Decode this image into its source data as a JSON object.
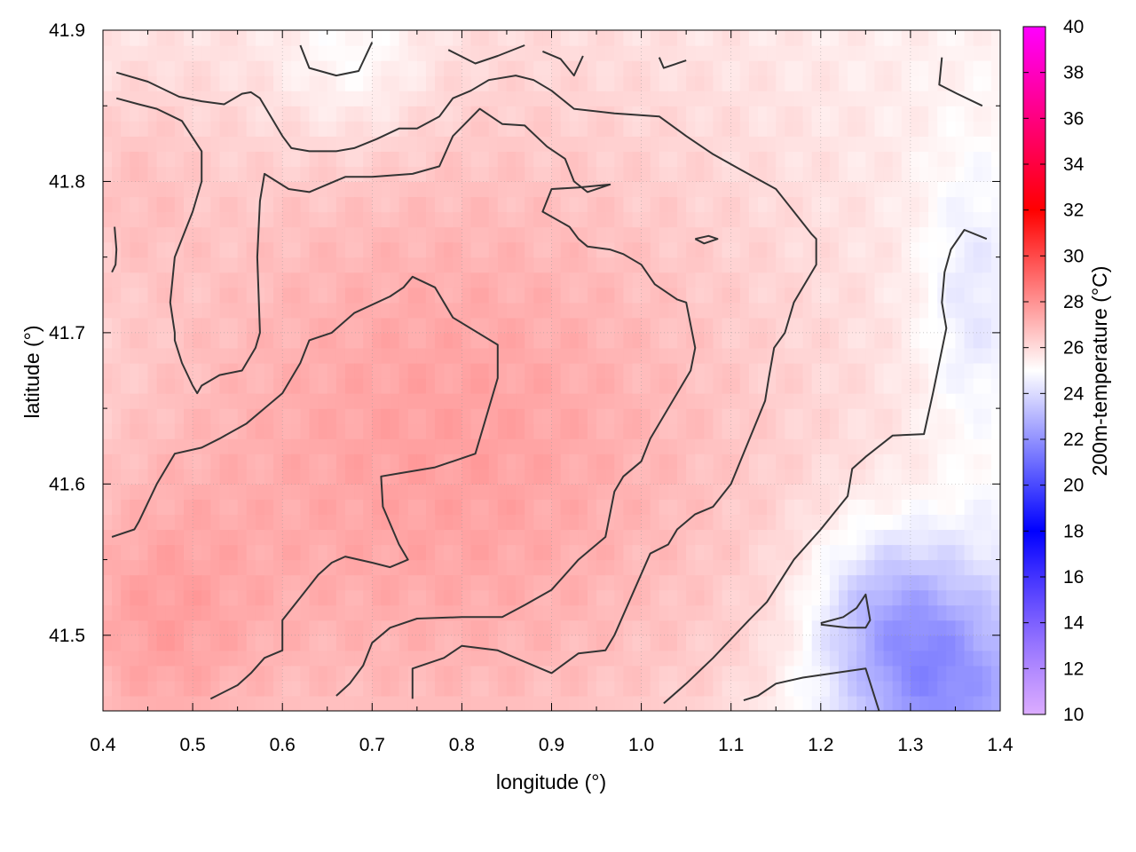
{
  "chart_data": {
    "type": "heatmap",
    "xlabel": "longitude (°)",
    "ylabel": "latitude (°)",
    "colorbar_label": "200m-temperature (°C)",
    "xlim": [
      0.4,
      1.4
    ],
    "ylim": [
      41.45,
      41.9
    ],
    "x_ticks": [
      "0.4",
      "0.5",
      "0.6",
      "0.7",
      "0.8",
      "0.9",
      "1.0",
      "1.1",
      "1.2",
      "1.3",
      "1.4"
    ],
    "y_ticks": [
      "41.5",
      "41.6",
      "41.7",
      "41.8",
      "41.9"
    ],
    "colorbar_range": [
      10,
      40
    ],
    "colorbar_ticks": [
      "10",
      "12",
      "14",
      "16",
      "18",
      "20",
      "22",
      "24",
      "26",
      "28",
      "30",
      "32",
      "34",
      "36",
      "38",
      "40"
    ],
    "grid": true,
    "colormap": [
      {
        "value": 10,
        "color": "#cc88ff"
      },
      {
        "value": 18,
        "color": "#0000ff"
      },
      {
        "value": 25,
        "color": "#ffffff"
      },
      {
        "value": 32,
        "color": "#ff0000"
      },
      {
        "value": 40,
        "color": "#ff00ff"
      }
    ],
    "field_description_values": {
      "base_temperature": 25.3,
      "warm_core_center": [
        0.78,
        41.62
      ],
      "warm_core_peak": 27.6,
      "cool_patches": [
        {
          "center": [
            1.27,
            41.52
          ],
          "temperature": 21.5
        },
        {
          "center": [
            0.68,
            41.88
          ],
          "temperature": 23.5
        },
        {
          "center": [
            1.33,
            41.47
          ],
          "temperature": 21.5
        }
      ]
    },
    "contours": [
      {
        "level": 25,
        "points": [
          [
            0.415,
            41.872
          ],
          [
            0.45,
            41.866
          ],
          [
            0.485,
            41.856
          ],
          [
            0.51,
            41.853
          ],
          [
            0.535,
            41.851
          ],
          [
            0.555,
            41.858
          ],
          [
            0.565,
            41.859
          ],
          [
            0.575,
            41.855
          ],
          [
            0.6,
            41.83
          ],
          [
            0.61,
            41.822
          ],
          [
            0.63,
            41.82
          ],
          [
            0.66,
            41.82
          ],
          [
            0.68,
            41.822
          ],
          [
            0.705,
            41.828
          ],
          [
            0.73,
            41.835
          ],
          [
            0.75,
            41.835
          ],
          [
            0.775,
            41.843
          ],
          [
            0.79,
            41.855
          ],
          [
            0.81,
            41.86
          ],
          [
            0.83,
            41.867
          ],
          [
            0.86,
            41.87
          ],
          [
            0.88,
            41.867
          ],
          [
            0.9,
            41.86
          ],
          [
            0.925,
            41.848
          ],
          [
            0.97,
            41.845
          ],
          [
            1.02,
            41.843
          ],
          [
            1.05,
            41.83
          ],
          [
            1.08,
            41.818
          ],
          [
            1.11,
            41.808
          ],
          [
            1.15,
            41.795
          ],
          [
            1.17,
            41.78
          ],
          [
            1.19,
            41.765
          ],
          [
            1.195,
            41.762
          ],
          [
            1.195,
            41.745
          ],
          [
            1.17,
            41.72
          ],
          [
            1.16,
            41.7
          ],
          [
            1.148,
            41.69
          ],
          [
            1.142,
            41.67
          ],
          [
            1.138,
            41.655
          ],
          [
            1.1,
            41.6
          ],
          [
            1.08,
            41.585
          ],
          [
            1.06,
            41.58
          ],
          [
            1.04,
            41.57
          ],
          [
            1.03,
            41.56
          ],
          [
            1.01,
            41.554
          ],
          [
            0.97,
            41.5
          ],
          [
            0.96,
            41.49
          ],
          [
            0.93,
            41.488
          ],
          [
            0.9,
            41.475
          ],
          [
            0.84,
            41.49
          ],
          [
            0.8,
            41.493
          ],
          [
            0.78,
            41.485
          ],
          [
            0.745,
            41.478
          ],
          [
            0.745,
            41.458
          ]
        ]
      },
      {
        "level": 26,
        "points": [
          [
            0.415,
            41.855
          ],
          [
            0.44,
            41.851
          ],
          [
            0.46,
            41.848
          ],
          [
            0.488,
            41.84
          ],
          [
            0.51,
            41.82
          ],
          [
            0.51,
            41.8
          ],
          [
            0.5,
            41.78
          ],
          [
            0.48,
            41.75
          ],
          [
            0.475,
            41.72
          ],
          [
            0.48,
            41.7
          ],
          [
            0.48,
            41.695
          ],
          [
            0.488,
            41.68
          ],
          [
            0.5,
            41.665
          ],
          [
            0.505,
            41.66
          ],
          [
            0.51,
            41.665
          ],
          [
            0.53,
            41.672
          ],
          [
            0.555,
            41.675
          ],
          [
            0.57,
            41.69
          ],
          [
            0.575,
            41.7
          ],
          [
            0.572,
            41.75
          ],
          [
            0.575,
            41.787
          ],
          [
            0.58,
            41.805
          ],
          [
            0.607,
            41.795
          ],
          [
            0.63,
            41.793
          ],
          [
            0.67,
            41.803
          ],
          [
            0.7,
            41.803
          ],
          [
            0.745,
            41.805
          ],
          [
            0.775,
            41.81
          ],
          [
            0.79,
            41.83
          ],
          [
            0.82,
            41.848
          ],
          [
            0.845,
            41.838
          ],
          [
            0.87,
            41.837
          ],
          [
            0.895,
            41.823
          ],
          [
            0.915,
            41.815
          ],
          [
            0.925,
            41.8
          ],
          [
            0.94,
            41.793
          ],
          [
            0.965,
            41.798
          ],
          [
            0.93,
            41.796
          ],
          [
            0.9,
            41.795
          ],
          [
            0.89,
            41.78
          ],
          [
            0.92,
            41.77
          ],
          [
            0.93,
            41.762
          ],
          [
            0.94,
            41.757
          ],
          [
            0.965,
            41.755
          ],
          [
            0.98,
            41.752
          ],
          [
            1.0,
            41.745
          ],
          [
            1.015,
            41.732
          ],
          [
            1.04,
            41.722
          ],
          [
            1.05,
            41.72
          ],
          [
            1.06,
            41.69
          ],
          [
            1.055,
            41.675
          ],
          [
            1.04,
            41.66
          ],
          [
            1.01,
            41.63
          ],
          [
            1.0,
            41.615
          ],
          [
            0.98,
            41.605
          ],
          [
            0.97,
            41.595
          ],
          [
            0.96,
            41.565
          ],
          [
            0.93,
            41.55
          ],
          [
            0.9,
            41.53
          ],
          [
            0.87,
            41.52
          ],
          [
            0.845,
            41.512
          ],
          [
            0.8,
            41.512
          ],
          [
            0.75,
            41.511
          ],
          [
            0.72,
            41.505
          ],
          [
            0.7,
            41.495
          ],
          [
            0.69,
            41.48
          ],
          [
            0.675,
            41.468
          ],
          [
            0.66,
            41.46
          ]
        ]
      },
      {
        "level": 27,
        "points": [
          [
            0.41,
            41.565
          ],
          [
            0.435,
            41.57
          ],
          [
            0.44,
            41.575
          ],
          [
            0.46,
            41.6
          ],
          [
            0.48,
            41.62
          ],
          [
            0.51,
            41.624
          ],
          [
            0.53,
            41.63
          ],
          [
            0.56,
            41.64
          ],
          [
            0.58,
            41.65
          ],
          [
            0.6,
            41.66
          ],
          [
            0.62,
            41.68
          ],
          [
            0.63,
            41.695
          ],
          [
            0.655,
            41.7
          ],
          [
            0.68,
            41.713
          ],
          [
            0.72,
            41.724
          ],
          [
            0.735,
            41.73
          ],
          [
            0.745,
            41.737
          ],
          [
            0.77,
            41.73
          ],
          [
            0.79,
            41.71
          ],
          [
            0.84,
            41.692
          ],
          [
            0.84,
            41.67
          ],
          [
            0.825,
            41.64
          ],
          [
            0.815,
            41.62
          ],
          [
            0.79,
            41.615
          ],
          [
            0.77,
            41.611
          ],
          [
            0.73,
            41.607
          ],
          [
            0.71,
            41.605
          ],
          [
            0.712,
            41.585
          ],
          [
            0.73,
            41.56
          ],
          [
            0.74,
            41.55
          ],
          [
            0.72,
            41.545
          ],
          [
            0.7,
            41.548
          ],
          [
            0.67,
            41.552
          ],
          [
            0.655,
            41.548
          ],
          [
            0.64,
            41.54
          ],
          [
            0.62,
            41.525
          ],
          [
            0.6,
            41.51
          ],
          [
            0.6,
            41.49
          ],
          [
            0.58,
            41.485
          ],
          [
            0.565,
            41.475
          ],
          [
            0.55,
            41.467
          ],
          [
            0.52,
            41.458
          ]
        ]
      },
      {
        "level": 25,
        "points": [
          [
            1.114,
            41.457
          ],
          [
            1.13,
            41.46
          ],
          [
            1.15,
            41.468
          ],
          [
            1.18,
            41.472
          ],
          [
            1.25,
            41.478
          ],
          [
            1.265,
            41.45
          ]
        ]
      },
      {
        "level": 25,
        "points": [
          [
            1.2,
            41.508
          ],
          [
            1.225,
            41.512
          ],
          [
            1.24,
            41.518
          ],
          [
            1.25,
            41.527
          ],
          [
            1.255,
            41.51
          ],
          [
            1.25,
            41.505
          ],
          [
            1.23,
            41.505
          ],
          [
            1.2,
            41.507
          ]
        ]
      },
      {
        "level": 25,
        "points": [
          [
            1.335,
            41.882
          ],
          [
            1.332,
            41.864
          ],
          [
            1.352,
            41.858
          ],
          [
            1.38,
            41.85
          ]
        ]
      },
      {
        "level": 25,
        "points": [
          [
            1.385,
            41.762
          ],
          [
            1.36,
            41.768
          ],
          [
            1.345,
            41.755
          ],
          [
            1.338,
            41.74
          ],
          [
            1.335,
            41.72
          ],
          [
            1.34,
            41.703
          ],
          [
            1.325,
            41.66
          ],
          [
            1.315,
            41.633
          ],
          [
            1.28,
            41.632
          ],
          [
            1.25,
            41.618
          ],
          [
            1.235,
            41.61
          ],
          [
            1.23,
            41.592
          ],
          [
            1.2,
            41.57
          ],
          [
            1.17,
            41.55
          ],
          [
            1.14,
            41.522
          ],
          [
            1.12,
            41.51
          ],
          [
            1.08,
            41.485
          ],
          [
            1.05,
            41.468
          ],
          [
            1.025,
            41.455
          ]
        ]
      },
      {
        "level": 24,
        "points": [
          [
            0.62,
            41.89
          ],
          [
            0.63,
            41.875
          ],
          [
            0.66,
            41.87
          ],
          [
            0.685,
            41.873
          ],
          [
            0.7,
            41.892
          ]
        ]
      },
      {
        "level": 24,
        "points": [
          [
            0.785,
            41.887
          ],
          [
            0.815,
            41.878
          ],
          [
            0.84,
            41.883
          ],
          [
            0.87,
            41.89
          ]
        ]
      },
      {
        "level": 24,
        "points": [
          [
            0.89,
            41.886
          ],
          [
            0.91,
            41.881
          ],
          [
            0.925,
            41.87
          ],
          [
            0.935,
            41.883
          ]
        ]
      },
      {
        "level": 24,
        "points": [
          [
            1.02,
            41.882
          ],
          [
            1.025,
            41.875
          ],
          [
            1.05,
            41.88
          ]
        ]
      },
      {
        "level": 24,
        "points": [
          [
            1.06,
            41.762
          ],
          [
            1.075,
            41.764
          ],
          [
            1.085,
            41.762
          ],
          [
            1.07,
            41.759
          ],
          [
            1.06,
            41.762
          ]
        ]
      },
      {
        "level": 26,
        "points": [
          [
            0.413,
            41.77
          ],
          [
            0.415,
            41.755
          ],
          [
            0.414,
            41.745
          ],
          [
            0.41,
            41.74
          ]
        ]
      }
    ]
  }
}
